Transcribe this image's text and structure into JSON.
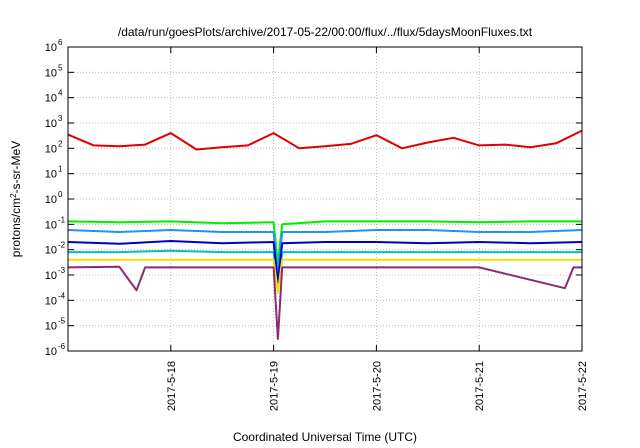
{
  "chart_data": {
    "type": "line",
    "title": "/data/run/goesPlots/archive/2017-05-22/00:00/flux/../flux/5daysMoonFluxes.txt",
    "xlabel": "Coordinated Universal Time (UTC)",
    "ylabel": "protons/cm²-s-sr-MeV",
    "y_scale": "log",
    "ylim": [
      1e-06,
      1000000.0
    ],
    "y_ticks": [
      {
        "value": 1e-06,
        "base": "10",
        "exp": "-6"
      },
      {
        "value": 1e-05,
        "base": "10",
        "exp": "-5"
      },
      {
        "value": 0.0001,
        "base": "10",
        "exp": "-4"
      },
      {
        "value": 0.001,
        "base": "10",
        "exp": "-3"
      },
      {
        "value": 0.01,
        "base": "10",
        "exp": "-2"
      },
      {
        "value": 0.1,
        "base": "10",
        "exp": "-1"
      },
      {
        "value": 1,
        "base": "10",
        "exp": "0"
      },
      {
        "value": 10,
        "base": "10",
        "exp": "1"
      },
      {
        "value": 100,
        "base": "10",
        "exp": "2"
      },
      {
        "value": 1000,
        "base": "10",
        "exp": "3"
      },
      {
        "value": 10000,
        "base": "10",
        "exp": "4"
      },
      {
        "value": 100000,
        "base": "10",
        "exp": "5"
      },
      {
        "value": 1000000,
        "base": "10",
        "exp": "6"
      }
    ],
    "xlim": [
      "2017-05-17",
      "2017-05-22"
    ],
    "x_ticks": [
      "2017-5-18",
      "2017-5-19",
      "2017-5-20",
      "2017-5-21",
      "2017-5-22"
    ],
    "grid": true,
    "legend": "none",
    "series": [
      {
        "color": "#e00000",
        "x": [
          "2017-05-17",
          "2017-05-17T06:00",
          "2017-05-17T12:00",
          "2017-05-17T18:00",
          "2017-05-18",
          "2017-05-18T06:00",
          "2017-05-18T12:00",
          "2017-05-18T18:00",
          "2017-05-19",
          "2017-05-19T06:00",
          "2017-05-19T12:00",
          "2017-05-19T18:00",
          "2017-05-20",
          "2017-05-20T06:00",
          "2017-05-20T12:00",
          "2017-05-20T18:00",
          "2017-05-21",
          "2017-05-21T06:00",
          "2017-05-21T12:00",
          "2017-05-21T18:00",
          "2017-05-22"
        ],
        "y": [
          350,
          130,
          120,
          140,
          400,
          90,
          110,
          130,
          400,
          100,
          120,
          150,
          330,
          100,
          170,
          260,
          130,
          140,
          110,
          160,
          500
        ]
      },
      {
        "color": "#00ee00",
        "x": [
          "2017-05-17",
          "2017-05-17T12:00",
          "2017-05-18",
          "2017-05-18T12:00",
          "2017-05-19",
          "2017-05-19T01:00",
          "2017-05-19T02:00",
          "2017-05-19T12:00",
          "2017-05-20",
          "2017-05-20T12:00",
          "2017-05-21",
          "2017-05-21T12:00",
          "2017-05-22"
        ],
        "y": [
          0.13,
          0.12,
          0.13,
          0.11,
          0.12,
          0.003,
          0.1,
          0.13,
          0.13,
          0.13,
          0.12,
          0.13,
          0.13
        ]
      },
      {
        "color": "#1e90ff",
        "x": [
          "2017-05-17",
          "2017-05-17T12:00",
          "2017-05-18",
          "2017-05-18T12:00",
          "2017-05-19",
          "2017-05-19T01:00",
          "2017-05-19T02:00",
          "2017-05-19T12:00",
          "2017-05-20",
          "2017-05-20T12:00",
          "2017-05-21",
          "2017-05-21T12:00",
          "2017-05-22"
        ],
        "y": [
          0.06,
          0.05,
          0.06,
          0.05,
          0.05,
          0.001,
          0.05,
          0.05,
          0.06,
          0.06,
          0.05,
          0.05,
          0.06
        ]
      },
      {
        "color": "#00c0c0",
        "x": [
          "2017-05-17",
          "2017-05-17T12:00",
          "2017-05-18",
          "2017-05-18T12:00",
          "2017-05-19",
          "2017-05-19T01:00",
          "2017-05-19T02:00",
          "2017-05-19T12:00",
          "2017-05-20",
          "2017-05-20T12:00",
          "2017-05-21",
          "2017-05-21T12:00",
          "2017-05-22"
        ],
        "y": [
          0.008,
          0.008,
          0.009,
          0.008,
          0.008,
          0.0003,
          0.008,
          0.008,
          0.008,
          0.008,
          0.008,
          0.008,
          0.008
        ]
      },
      {
        "color": "#0000c8",
        "x": [
          "2017-05-17",
          "2017-05-17T12:00",
          "2017-05-18",
          "2017-05-18T12:00",
          "2017-05-19",
          "2017-05-19T01:00",
          "2017-05-19T02:00",
          "2017-05-19T12:00",
          "2017-05-20",
          "2017-05-20T12:00",
          "2017-05-21",
          "2017-05-21T12:00",
          "2017-05-22"
        ],
        "y": [
          0.02,
          0.017,
          0.022,
          0.018,
          0.02,
          0.0005,
          0.018,
          0.02,
          0.02,
          0.018,
          0.02,
          0.018,
          0.02
        ]
      },
      {
        "color": "#f0e000",
        "x": [
          "2017-05-17",
          "2017-05-18",
          "2017-05-19",
          "2017-05-19T01:00",
          "2017-05-19T02:00",
          "2017-05-20",
          "2017-05-21",
          "2017-05-22"
        ],
        "y": [
          0.004,
          0.004,
          0.004,
          0.0002,
          0.004,
          0.004,
          0.004,
          0.004
        ]
      },
      {
        "color": "#8b2c70",
        "x": [
          "2017-05-17",
          "2017-05-17T12:00",
          "2017-05-17T16:00",
          "2017-05-17T18:00",
          "2017-05-18",
          "2017-05-19",
          "2017-05-19T01:00",
          "2017-05-19T02:00",
          "2017-05-20",
          "2017-05-21",
          "2017-05-21T20:00",
          "2017-05-21T22:00",
          "2017-05-22"
        ],
        "y": [
          0.002,
          0.0021,
          0.00025,
          0.002,
          0.002,
          0.002,
          3e-06,
          0.002,
          0.002,
          0.002,
          0.0003,
          0.002,
          0.002
        ]
      }
    ]
  }
}
